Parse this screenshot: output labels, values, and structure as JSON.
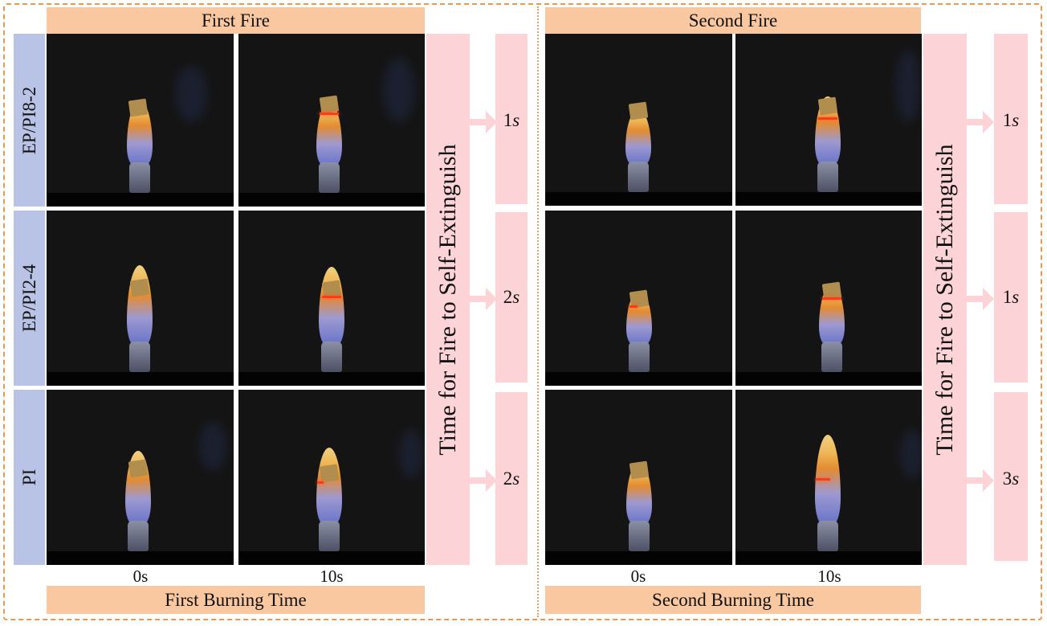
{
  "panels": [
    {
      "title": "First Fire",
      "burning_time_label": "First Burning Time",
      "time_axis": [
        "0s",
        "10s"
      ],
      "extinguish_label": "Time for Fire to Self-Extinguish",
      "results": [
        {
          "value": "1",
          "unit": "s"
        },
        {
          "value": "2",
          "unit": "s"
        },
        {
          "value": "2",
          "unit": "s"
        }
      ]
    },
    {
      "title": "Second Fire",
      "burning_time_label": "Second Burning Time",
      "time_axis": [
        "0s",
        "10s"
      ],
      "extinguish_label": "Time for Fire to Self-Extinguish",
      "results": [
        {
          "value": "1",
          "unit": "s"
        },
        {
          "value": "1",
          "unit": "s"
        },
        {
          "value": "3",
          "unit": "s"
        }
      ]
    }
  ],
  "samples": [
    "EP/PI8-2",
    "EP/PI2-4",
    "PI"
  ],
  "colors": {
    "border": "#e39a52",
    "header_fill": "#f9c8a0",
    "row_label_fill": "#b9c3e6",
    "time_fill": "#fcd3d6",
    "photo_background": "#141414"
  }
}
